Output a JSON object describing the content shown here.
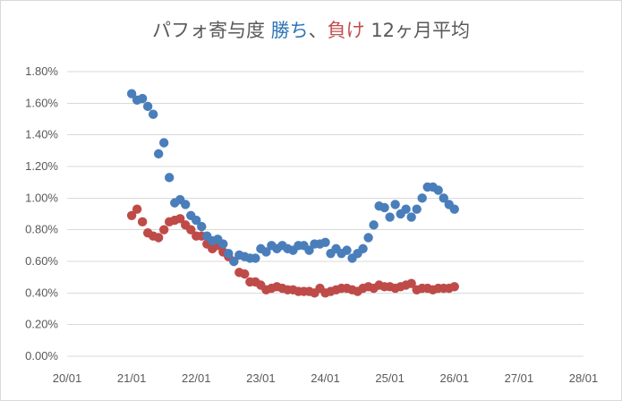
{
  "chart_data": {
    "type": "scatter",
    "title": {
      "prefix": "パフォ寄与度 ",
      "win": "勝ち",
      "sep": "、",
      "lose": "負け",
      "suffix": " 12ヶ月平均"
    },
    "colors": {
      "win": "#4a7ebb",
      "lose": "#be4b48",
      "title_text": "#595959",
      "win_text": "#2e75b6",
      "lose_text": "#c0504d",
      "grid": "#d9d9d9"
    },
    "x_axis": {
      "type": "date",
      "range": [
        "2020-01",
        "2028-01"
      ],
      "ticks": [
        "2020-01",
        "2021-01",
        "2022-01",
        "2023-01",
        "2024-01",
        "2025-01",
        "2026-01",
        "2027-01",
        "2028-01"
      ],
      "tick_labels": [
        "20/01",
        "21/01",
        "22/01",
        "23/01",
        "24/01",
        "25/01",
        "26/01",
        "27/01",
        "28/01"
      ]
    },
    "y_axis": {
      "range": [
        0,
        1.8
      ],
      "ticks": [
        0,
        0.2,
        0.4,
        0.6,
        0.8,
        1.0,
        1.2,
        1.4,
        1.6,
        1.8
      ],
      "tick_labels": [
        "0.00%",
        "0.20%",
        "0.40%",
        "0.60%",
        "0.80%",
        "1.00%",
        "1.20%",
        "1.40%",
        "1.60%",
        "1.80%"
      ],
      "unit": "%"
    },
    "grid": "horizontal",
    "series": [
      {
        "key": "win",
        "values": [
          [
            "2021-01",
            1.66
          ],
          [
            "2021-02",
            1.62
          ],
          [
            "2021-03",
            1.63
          ],
          [
            "2021-04",
            1.58
          ],
          [
            "2021-05",
            1.53
          ],
          [
            "2021-06",
            1.28
          ],
          [
            "2021-07",
            1.35
          ],
          [
            "2021-08",
            1.13
          ],
          [
            "2021-09",
            0.97
          ],
          [
            "2021-10",
            0.99
          ],
          [
            "2021-11",
            0.96
          ],
          [
            "2021-12",
            0.89
          ],
          [
            "2022-01",
            0.86
          ],
          [
            "2022-02",
            0.82
          ],
          [
            "2022-03",
            0.76
          ],
          [
            "2022-04",
            0.73
          ],
          [
            "2022-05",
            0.74
          ],
          [
            "2022-06",
            0.71
          ],
          [
            "2022-07",
            0.65
          ],
          [
            "2022-08",
            0.6
          ],
          [
            "2022-09",
            0.64
          ],
          [
            "2022-10",
            0.63
          ],
          [
            "2022-11",
            0.62
          ],
          [
            "2022-12",
            0.62
          ],
          [
            "2023-01",
            0.68
          ],
          [
            "2023-02",
            0.66
          ],
          [
            "2023-03",
            0.7
          ],
          [
            "2023-04",
            0.68
          ],
          [
            "2023-05",
            0.7
          ],
          [
            "2023-06",
            0.68
          ],
          [
            "2023-07",
            0.67
          ],
          [
            "2023-08",
            0.7
          ],
          [
            "2023-09",
            0.7
          ],
          [
            "2023-10",
            0.67
          ],
          [
            "2023-11",
            0.71
          ],
          [
            "2023-12",
            0.71
          ],
          [
            "2024-01",
            0.72
          ],
          [
            "2024-02",
            0.65
          ],
          [
            "2024-03",
            0.68
          ],
          [
            "2024-04",
            0.65
          ],
          [
            "2024-05",
            0.67
          ],
          [
            "2024-06",
            0.62
          ],
          [
            "2024-07",
            0.65
          ],
          [
            "2024-08",
            0.68
          ],
          [
            "2024-09",
            0.75
          ],
          [
            "2024-10",
            0.83
          ],
          [
            "2024-11",
            0.95
          ],
          [
            "2024-12",
            0.94
          ],
          [
            "2025-01",
            0.88
          ],
          [
            "2025-02",
            0.96
          ],
          [
            "2025-03",
            0.9
          ],
          [
            "2025-04",
            0.93
          ],
          [
            "2025-05",
            0.88
          ],
          [
            "2025-06",
            0.93
          ],
          [
            "2025-07",
            1.0
          ],
          [
            "2025-08",
            1.07
          ],
          [
            "2025-09",
            1.07
          ],
          [
            "2025-10",
            1.05
          ],
          [
            "2025-11",
            1.0
          ],
          [
            "2025-12",
            0.96
          ],
          [
            "2026-01",
            0.93
          ]
        ]
      },
      {
        "key": "lose",
        "values": [
          [
            "2021-01",
            0.89
          ],
          [
            "2021-02",
            0.93
          ],
          [
            "2021-03",
            0.85
          ],
          [
            "2021-04",
            0.78
          ],
          [
            "2021-05",
            0.76
          ],
          [
            "2021-06",
            0.75
          ],
          [
            "2021-07",
            0.8
          ],
          [
            "2021-08",
            0.85
          ],
          [
            "2021-09",
            0.86
          ],
          [
            "2021-10",
            0.87
          ],
          [
            "2021-11",
            0.83
          ],
          [
            "2021-12",
            0.8
          ],
          [
            "2022-01",
            0.76
          ],
          [
            "2022-02",
            0.76
          ],
          [
            "2022-03",
            0.71
          ],
          [
            "2022-04",
            0.68
          ],
          [
            "2022-05",
            0.7
          ],
          [
            "2022-06",
            0.66
          ],
          [
            "2022-07",
            0.63
          ],
          [
            "2022-08",
            0.6
          ],
          [
            "2022-09",
            0.53
          ],
          [
            "2022-10",
            0.52
          ],
          [
            "2022-11",
            0.47
          ],
          [
            "2022-12",
            0.47
          ],
          [
            "2023-01",
            0.45
          ],
          [
            "2023-02",
            0.42
          ],
          [
            "2023-03",
            0.43
          ],
          [
            "2023-04",
            0.44
          ],
          [
            "2023-05",
            0.43
          ],
          [
            "2023-06",
            0.42
          ],
          [
            "2023-07",
            0.42
          ],
          [
            "2023-08",
            0.41
          ],
          [
            "2023-09",
            0.41
          ],
          [
            "2023-10",
            0.41
          ],
          [
            "2023-11",
            0.4
          ],
          [
            "2023-12",
            0.43
          ],
          [
            "2024-01",
            0.4
          ],
          [
            "2024-02",
            0.41
          ],
          [
            "2024-03",
            0.42
          ],
          [
            "2024-04",
            0.43
          ],
          [
            "2024-05",
            0.43
          ],
          [
            "2024-06",
            0.42
          ],
          [
            "2024-07",
            0.41
          ],
          [
            "2024-08",
            0.43
          ],
          [
            "2024-09",
            0.44
          ],
          [
            "2024-10",
            0.43
          ],
          [
            "2024-11",
            0.45
          ],
          [
            "2024-12",
            0.44
          ],
          [
            "2025-01",
            0.44
          ],
          [
            "2025-02",
            0.43
          ],
          [
            "2025-03",
            0.44
          ],
          [
            "2025-04",
            0.45
          ],
          [
            "2025-05",
            0.46
          ],
          [
            "2025-06",
            0.42
          ],
          [
            "2025-07",
            0.43
          ],
          [
            "2025-08",
            0.43
          ],
          [
            "2025-09",
            0.42
          ],
          [
            "2025-10",
            0.43
          ],
          [
            "2025-11",
            0.43
          ],
          [
            "2025-12",
            0.43
          ],
          [
            "2026-01",
            0.44
          ]
        ]
      }
    ]
  }
}
